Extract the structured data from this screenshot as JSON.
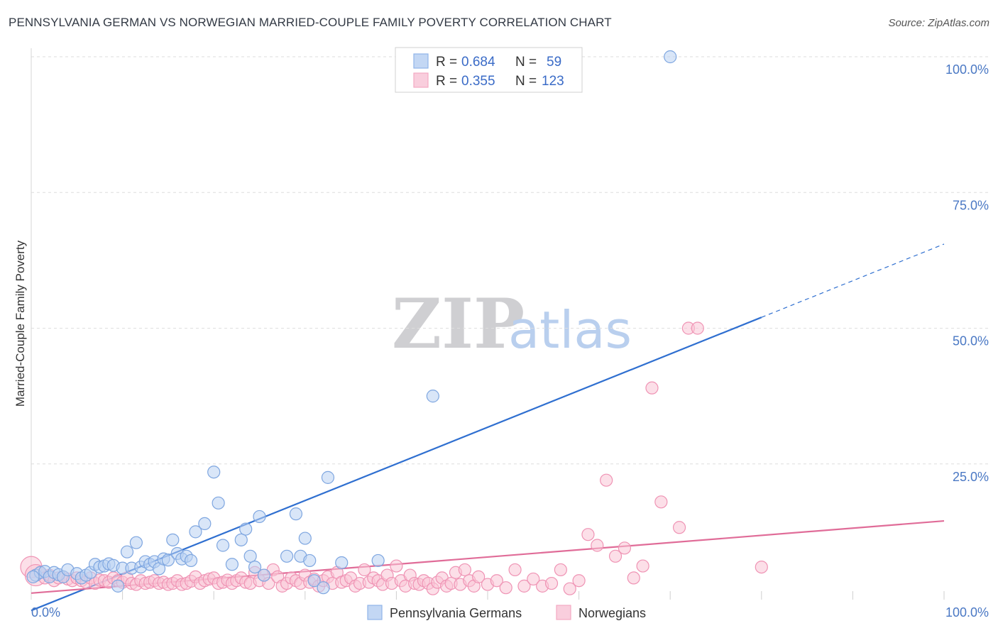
{
  "title": "PENNSYLVANIA GERMAN VS NORWEGIAN MARRIED-COUPLE FAMILY POVERTY CORRELATION CHART",
  "source": "Source: ZipAtlas.com",
  "watermark": {
    "zip": "ZIP",
    "atlas": "atlas"
  },
  "legend": {
    "rows": [
      {
        "r_label": "R =",
        "r_value": "0.684",
        "n_label": "N =",
        "n_value": "59"
      },
      {
        "r_label": "R =",
        "r_value": "0.355",
        "n_label": "N =",
        "n_value": "123"
      }
    ]
  },
  "chart_data": {
    "type": "scatter",
    "title": "PENNSYLVANIA GERMAN VS NORWEGIAN MARRIED-COUPLE FAMILY POVERTY CORRELATION CHART",
    "xlabel": "",
    "ylabel": "Married-Couple Family Poverty",
    "xlim": [
      0,
      100
    ],
    "ylim": [
      0,
      100
    ],
    "x_tick_labels": [
      "0.0%",
      "100.0%"
    ],
    "y_ticks": [
      25,
      50,
      75,
      100
    ],
    "y_tick_labels": [
      "25.0%",
      "50.0%",
      "75.0%",
      "100.0%"
    ],
    "grid": true,
    "legend_position": "top-center",
    "series": [
      {
        "name": "Pennsylvania Germans",
        "color": "#8fb4e8",
        "line_color": "#2f6fd0",
        "R": 0.684,
        "N": 59,
        "trend": {
          "x0": 0,
          "y0": -2.0,
          "x1": 80,
          "y1": 52.0,
          "dash_to_x": 100,
          "dash_to_y": 65.5
        },
        "points": [
          [
            0.5,
            4.5
          ],
          [
            1,
            5
          ],
          [
            1.5,
            5.2
          ],
          [
            2,
            4.2
          ],
          [
            2.5,
            5
          ],
          [
            3,
            4.6
          ],
          [
            3.5,
            4.2
          ],
          [
            4,
            5.5
          ],
          [
            5,
            4.8
          ],
          [
            5.5,
            4
          ],
          [
            6,
            4.5
          ],
          [
            6.5,
            5
          ],
          [
            7,
            6.5
          ],
          [
            7.5,
            6
          ],
          [
            8,
            6.2
          ],
          [
            8.5,
            6.6
          ],
          [
            9,
            6.3
          ],
          [
            9.5,
            2.5
          ],
          [
            10,
            5.8
          ],
          [
            10.5,
            8.8
          ],
          [
            11,
            5.8
          ],
          [
            11.5,
            10.5
          ],
          [
            12,
            6
          ],
          [
            12.5,
            7
          ],
          [
            13,
            6.5
          ],
          [
            13.5,
            7
          ],
          [
            14,
            5.7
          ],
          [
            14.5,
            7.5
          ],
          [
            15,
            7.3
          ],
          [
            15.5,
            11
          ],
          [
            16,
            8.5
          ],
          [
            16.5,
            7.5
          ],
          [
            17,
            8
          ],
          [
            17.5,
            7.2
          ],
          [
            18,
            12.5
          ],
          [
            19,
            14
          ],
          [
            20,
            23.5
          ],
          [
            20.5,
            17.8
          ],
          [
            21,
            10
          ],
          [
            22,
            6.5
          ],
          [
            23,
            11
          ],
          [
            23.5,
            13
          ],
          [
            24,
            8
          ],
          [
            24.5,
            6
          ],
          [
            25,
            15.3
          ],
          [
            25.5,
            4.5
          ],
          [
            28,
            8
          ],
          [
            29,
            15.8
          ],
          [
            29.5,
            8
          ],
          [
            30,
            11.3
          ],
          [
            30.5,
            7.2
          ],
          [
            31,
            3.5
          ],
          [
            32,
            2.2
          ],
          [
            32.5,
            22.5
          ],
          [
            34,
            6.8
          ],
          [
            38,
            7.2
          ],
          [
            44,
            37.5
          ],
          [
            70,
            100
          ],
          [
            0.2,
            4.2
          ]
        ]
      },
      {
        "name": "Norwegians",
        "color": "#f4a9c3",
        "line_color": "#e06c98",
        "R": 0.355,
        "N": 123,
        "trend": {
          "x0": 0,
          "y0": 1.2,
          "x1": 100,
          "y1": 14.5
        },
        "points": [
          [
            0,
            6
          ],
          [
            0.5,
            4.5
          ],
          [
            1,
            5
          ],
          [
            1.5,
            4
          ],
          [
            2,
            4.5
          ],
          [
            2.5,
            3.5
          ],
          [
            3,
            4
          ],
          [
            3.5,
            4.2
          ],
          [
            4,
            3.8
          ],
          [
            4.5,
            3.5
          ],
          [
            5,
            4
          ],
          [
            5.5,
            3.5
          ],
          [
            6,
            3.2
          ],
          [
            6.5,
            4
          ],
          [
            7,
            3
          ],
          [
            7.5,
            3.6
          ],
          [
            8,
            3.5
          ],
          [
            8.5,
            3.2
          ],
          [
            9,
            4
          ],
          [
            9.5,
            3.5
          ],
          [
            10,
            3.2
          ],
          [
            10.5,
            4
          ],
          [
            11,
            3
          ],
          [
            11.5,
            2.8
          ],
          [
            12,
            3.5
          ],
          [
            12.5,
            3
          ],
          [
            13,
            3.2
          ],
          [
            13.5,
            3.5
          ],
          [
            14,
            3
          ],
          [
            14.5,
            3.2
          ],
          [
            15,
            2.8
          ],
          [
            15.5,
            3
          ],
          [
            16,
            3.5
          ],
          [
            16.5,
            2.8
          ],
          [
            17,
            3
          ],
          [
            17.5,
            3.4
          ],
          [
            18,
            4.2
          ],
          [
            18.5,
            3
          ],
          [
            19,
            3.5
          ],
          [
            19.5,
            3.8
          ],
          [
            20,
            4
          ],
          [
            20.5,
            3
          ],
          [
            21,
            3.2
          ],
          [
            21.5,
            3.6
          ],
          [
            22,
            3
          ],
          [
            22.5,
            3.5
          ],
          [
            23,
            4
          ],
          [
            23.5,
            3.2
          ],
          [
            24,
            3
          ],
          [
            24.5,
            5
          ],
          [
            25,
            3.5
          ],
          [
            25.5,
            4.5
          ],
          [
            26,
            3
          ],
          [
            26.5,
            5.5
          ],
          [
            27,
            4.2
          ],
          [
            27.5,
            2.5
          ],
          [
            28,
            3
          ],
          [
            28.5,
            4
          ],
          [
            29,
            3.5
          ],
          [
            29.5,
            3
          ],
          [
            30,
            4.5
          ],
          [
            30.5,
            3.2
          ],
          [
            31,
            3.8
          ],
          [
            31.5,
            2.5
          ],
          [
            32,
            3.5
          ],
          [
            32.5,
            4.2
          ],
          [
            33,
            3
          ],
          [
            33.5,
            5
          ],
          [
            34,
            3.2
          ],
          [
            34.5,
            3.5
          ],
          [
            35,
            4
          ],
          [
            35.5,
            2.5
          ],
          [
            36,
            3
          ],
          [
            36.5,
            5.5
          ],
          [
            37,
            3.2
          ],
          [
            37.5,
            4
          ],
          [
            38,
            3.5
          ],
          [
            38.5,
            2.8
          ],
          [
            39,
            4.5
          ],
          [
            39.5,
            3
          ],
          [
            40,
            6.2
          ],
          [
            40.5,
            3.5
          ],
          [
            41,
            2.5
          ],
          [
            41.5,
            4.5
          ],
          [
            42,
            3
          ],
          [
            42.5,
            2.8
          ],
          [
            43,
            3.5
          ],
          [
            43.5,
            3
          ],
          [
            44,
            2
          ],
          [
            44.5,
            3.2
          ],
          [
            45,
            4
          ],
          [
            45.5,
            2.5
          ],
          [
            46,
            3
          ],
          [
            46.5,
            5
          ],
          [
            47,
            2.8
          ],
          [
            47.5,
            5.5
          ],
          [
            48,
            3.5
          ],
          [
            48.5,
            2.5
          ],
          [
            49,
            4.2
          ],
          [
            50,
            2.8
          ],
          [
            51,
            3.5
          ],
          [
            52,
            2.2
          ],
          [
            53,
            5.5
          ],
          [
            54,
            2.5
          ],
          [
            55,
            3.8
          ],
          [
            56,
            2.5
          ],
          [
            57,
            3
          ],
          [
            58,
            5.5
          ],
          [
            59,
            2
          ],
          [
            60,
            3.5
          ],
          [
            61,
            12
          ],
          [
            62,
            10
          ],
          [
            63,
            22
          ],
          [
            64,
            8
          ],
          [
            65,
            9.5
          ],
          [
            66,
            4
          ],
          [
            67,
            6.2
          ],
          [
            68,
            39
          ],
          [
            69,
            18
          ],
          [
            71,
            13.3
          ],
          [
            72,
            50
          ],
          [
            73,
            50
          ],
          [
            80,
            6
          ]
        ]
      }
    ]
  }
}
